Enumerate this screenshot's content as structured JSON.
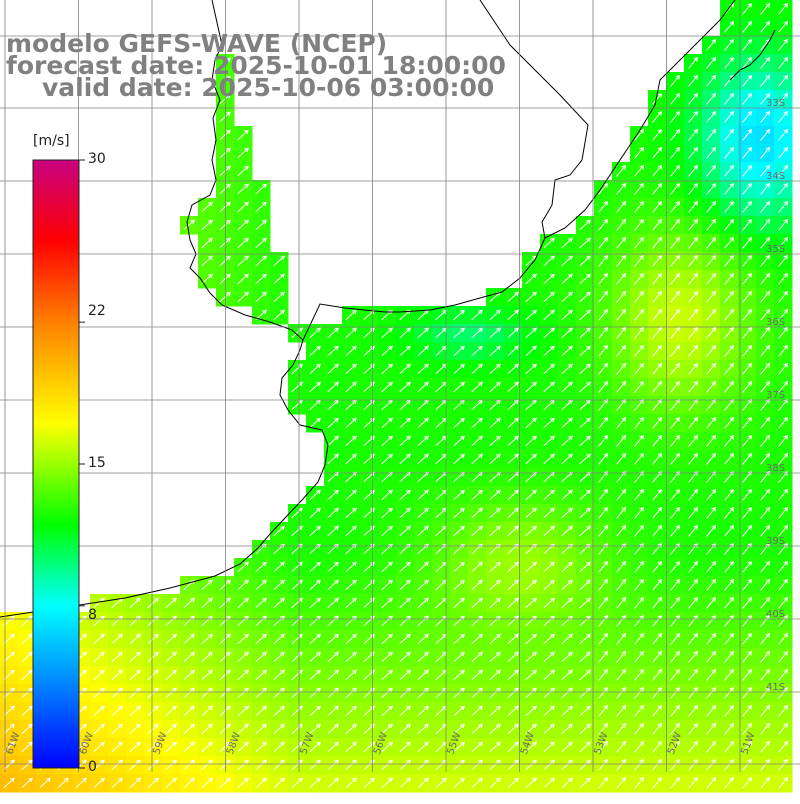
{
  "title": {
    "line1": "modelo GEFS-WAVE (NCEP)",
    "line2": "forecast date: 2025-10-01 18:00:00",
    "line3": "valid date: 2025-10-06 03:00:00"
  },
  "colorbar": {
    "unit": "[m/s]",
    "ticks": [
      "30",
      "22",
      "15",
      "8",
      "0"
    ],
    "tick_values": [
      30,
      22,
      15,
      8,
      0
    ],
    "min": 0,
    "max": 30,
    "colors": [
      "#0000ff",
      "#00ffff",
      "#00ff00",
      "#ffff00",
      "#ff8000",
      "#ff0000",
      "#c80080"
    ]
  },
  "map": {
    "lon_labels": [
      "61W",
      "60W",
      "59W",
      "58W",
      "57W",
      "56W",
      "55W",
      "54W",
      "53W",
      "52W",
      "51W"
    ],
    "lat_labels": [
      "33S",
      "34S",
      "35S",
      "36S",
      "37S",
      "38S",
      "39S",
      "40S",
      "41S"
    ],
    "land_color": "#ffffff",
    "coast_color": "#000000",
    "grid_color": "#808080",
    "arrow_color": "#ffffff",
    "prevailing_wind": "from SW toward NE"
  }
}
